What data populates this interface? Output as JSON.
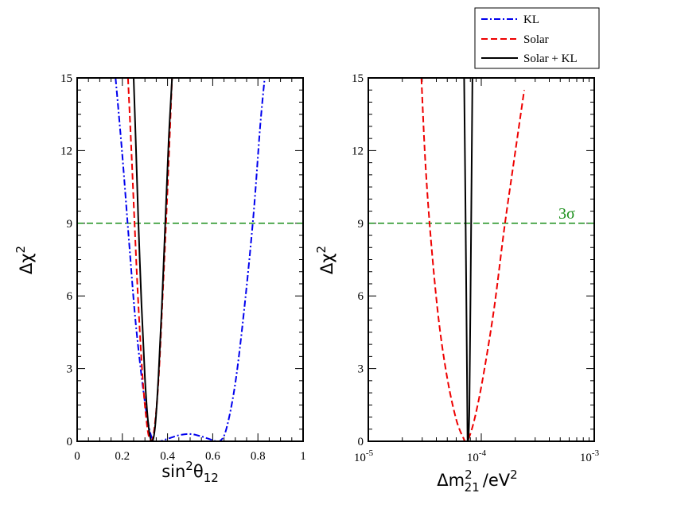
{
  "chart_data": [
    {
      "type": "line",
      "id": "left",
      "xlabel": {
        "base": "sin",
        "sup": "2",
        "theta": "θ",
        "sub": "12"
      },
      "ylabel": {
        "delta": "Δχ",
        "sup": "2"
      },
      "xlim": [
        0,
        1
      ],
      "ylim": [
        0,
        15
      ],
      "xticks": [
        "0",
        "0.2",
        "0.4",
        "0.6",
        "0.8",
        "1"
      ],
      "yticks": [
        "0",
        "3",
        "6",
        "9",
        "12",
        "15"
      ],
      "reference_line": {
        "y": 9,
        "color": "#1a8f1a"
      },
      "series": [
        {
          "name": "KL",
          "style": "dash-dot",
          "color": "#0000ee",
          "x": [
            0.17,
            0.2,
            0.23,
            0.26,
            0.3,
            0.33,
            0.36,
            0.4,
            0.45,
            0.5,
            0.55,
            0.6,
            0.63,
            0.66,
            0.7,
            0.74,
            0.78,
            0.81,
            0.83
          ],
          "y": [
            15,
            11.8,
            8.2,
            4.8,
            1.6,
            0.15,
            0,
            0.1,
            0.25,
            0.3,
            0.2,
            0.05,
            0,
            0.5,
            2.4,
            5.5,
            9.3,
            13,
            15
          ]
        },
        {
          "name": "Solar",
          "style": "dashed",
          "color": "#ee0000",
          "x": [
            0.225,
            0.24,
            0.255,
            0.27,
            0.29,
            0.31,
            0.325,
            0.34,
            0.36,
            0.38,
            0.4,
            0.42
          ],
          "y": [
            15,
            12,
            8.8,
            5.8,
            2.6,
            0.6,
            0.05,
            0.4,
            2.5,
            6.3,
            10.4,
            15
          ]
        },
        {
          "name": "Solar + KL",
          "style": "solid",
          "color": "#000000",
          "x": [
            0.25,
            0.26,
            0.27,
            0.285,
            0.3,
            0.315,
            0.33,
            0.345,
            0.36,
            0.375,
            0.39,
            0.405,
            0.42
          ],
          "y": [
            15,
            12.2,
            9.3,
            5.6,
            2.6,
            0.7,
            0,
            0.6,
            2.7,
            5.6,
            9,
            12.4,
            15
          ]
        }
      ]
    },
    {
      "type": "line",
      "id": "right",
      "xlabel": {
        "base": "Δm",
        "sup": "2",
        "sub": "21",
        "unit": "/eV",
        "unit_sup": "2"
      },
      "ylabel": {
        "delta": "Δχ",
        "sup": "2"
      },
      "xscale": "log",
      "xlim": [
        1e-05,
        0.001
      ],
      "ylim": [
        0,
        15
      ],
      "xticks": [
        {
          "base": "10",
          "exp": "-5"
        },
        {
          "base": "10",
          "exp": "-4"
        },
        {
          "base": "10",
          "exp": "-3"
        }
      ],
      "yticks": [
        "0",
        "3",
        "6",
        "9",
        "12",
        "15"
      ],
      "reference_line": {
        "y": 9,
        "color": "#1a8f1a",
        "label": "3σ"
      },
      "series": [
        {
          "name": "Solar",
          "style": "dashed",
          "color": "#ee0000",
          "x": [
            2.95e-05,
            3.2e-05,
            3.6e-05,
            4.2e-05,
            5e-05,
            6e-05,
            7e-05,
            7.4e-05,
            8e-05,
            9e-05,
            0.000105,
            0.00013,
            0.00016,
            0.000195,
            0.00024
          ],
          "y": [
            15,
            11.5,
            8.2,
            5.0,
            2.6,
            0.9,
            0.1,
            0,
            0.3,
            1.2,
            2.8,
            5.5,
            8.8,
            11.6,
            14.5
          ]
        },
        {
          "name": "Solar + KL",
          "style": "solid",
          "color": "#000000",
          "x": [
            7.05e-05,
            7.25e-05,
            7.45e-05,
            7.55e-05,
            7.65e-05,
            7.85e-05,
            8.1e-05,
            8.35e-05
          ],
          "y": [
            15,
            9.5,
            3.5,
            0.3,
            0,
            1.5,
            8.0,
            15
          ]
        }
      ]
    }
  ],
  "legend": {
    "items": [
      {
        "label": "KL",
        "style": "dash-dot",
        "color": "#0000ee"
      },
      {
        "label": "Solar",
        "style": "dashed",
        "color": "#ee0000"
      },
      {
        "label": "Solar + KL",
        "style": "solid",
        "color": "#000000"
      }
    ]
  }
}
